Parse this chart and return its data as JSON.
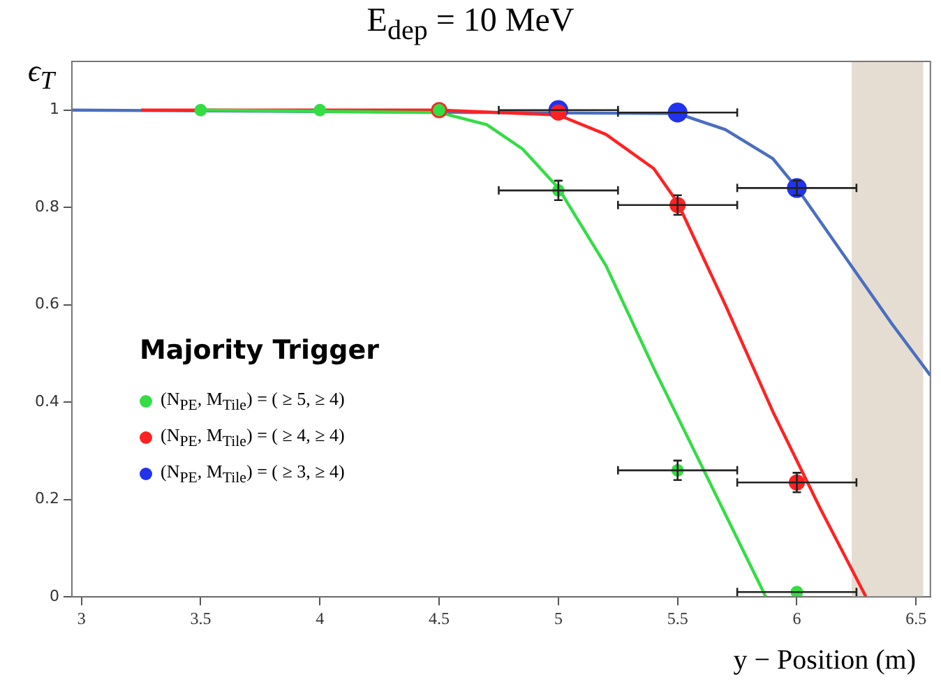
{
  "chart_data": {
    "type": "scatter",
    "title": "E$_{dep}$ = 10 MeV",
    "xlabel": "y − Position  (m)",
    "ylabel": "ϵ$_{T}$",
    "legend_title": "Majority Trigger",
    "legend": "left",
    "grid": false,
    "marker": "circle",
    "xlim": [
      2.96,
      6.56
    ],
    "ylim": [
      0,
      1.1
    ],
    "xticks": [
      3,
      3.5,
      4,
      4.5,
      5,
      5.5,
      6,
      6.5
    ],
    "yticks": [
      0,
      0.2,
      0.4,
      0.6,
      0.8,
      1
    ],
    "bands": [
      {
        "axis": "x",
        "from": 6.23,
        "to": 6.53,
        "color": "#e6ddd2"
      }
    ],
    "series": [
      {
        "name": "(N$_{PE}$, M$_{Tile}$) = ( ≥ 5,  ≥ 4)",
        "color": "#33dd44",
        "x": [
          3.5,
          4,
          4.5,
          5,
          5.5,
          6
        ],
        "values": [
          1,
          1,
          1,
          0.835,
          0.26,
          0.01
        ],
        "errors": [
          null,
          null,
          null,
          0.02,
          0.02,
          null
        ],
        "xerrors": [
          null,
          null,
          null,
          0.25,
          0.25,
          0.25
        ]
      },
      {
        "name": "(N$_{PE}$, M$_{Tile}$) = ( ≥ 4,  ≥ 4)",
        "color": "#ff2222",
        "x": [
          4.5,
          5,
          5.5,
          6
        ],
        "values": [
          1,
          0.995,
          0.805,
          0.235
        ],
        "errors": [
          null,
          null,
          0.02,
          0.02
        ],
        "xerrors": [
          null,
          null,
          0.25,
          0.25
        ]
      },
      {
        "name": "(N$_{PE}$, M$_{Tile}$) = ( ≥ 3,  ≥ 4)",
        "color": "#2233ee",
        "x": [
          5,
          5.5,
          6
        ],
        "values": [
          1,
          0.995,
          0.84
        ],
        "errors": [
          null,
          null,
          0.015
        ],
        "xerrors": [
          0.25,
          0.25,
          0.25
        ]
      },
      {
        "type": "line",
        "marker": "none",
        "color": "#33dd44",
        "x": [
          3.5,
          4.5,
          4.7,
          4.85,
          5,
          5.2,
          5.4,
          5.6,
          5.87
        ],
        "values": [
          1,
          0.995,
          0.97,
          0.92,
          0.84,
          0.68,
          0.47,
          0.27,
          0
        ]
      },
      {
        "type": "line",
        "marker": "none",
        "color": "#ff2222",
        "x": [
          3.25,
          4.5,
          5,
          5.2,
          5.4,
          5.5,
          5.7,
          5.9,
          6.1,
          6.29
        ],
        "values": [
          1,
          1,
          0.99,
          0.95,
          0.88,
          0.81,
          0.6,
          0.38,
          0.18,
          0
        ]
      },
      {
        "type": "line",
        "marker": "none",
        "color": "#4a6fc0",
        "x": [
          2.96,
          5.5,
          5.7,
          5.9,
          6,
          6.2,
          6.4,
          6.56
        ],
        "values": [
          1,
          0.993,
          0.96,
          0.9,
          0.84,
          0.7,
          0.56,
          0.455
        ]
      }
    ]
  }
}
